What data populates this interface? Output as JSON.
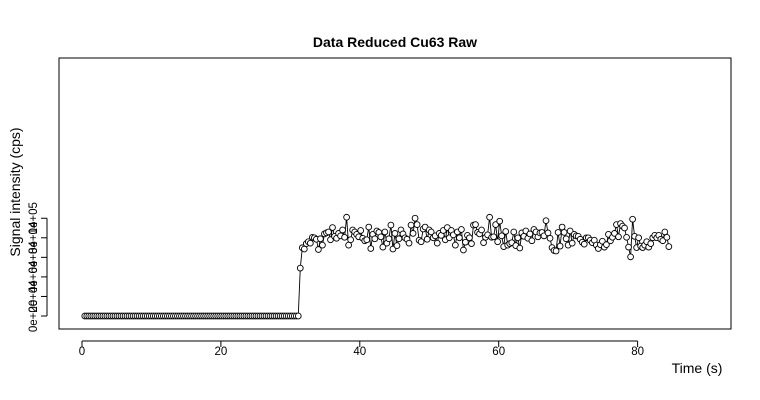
{
  "chart_data": {
    "type": "line",
    "title": "Data Reduced Cu63 Raw",
    "xlabel": "Time (s)",
    "ylabel": "Signal intensity (cps)",
    "xlim": [
      0,
      90
    ],
    "ylim": [
      0,
      100000
    ],
    "x_ticks": [
      0,
      20,
      40,
      60,
      80
    ],
    "x_tick_labels": [
      "0",
      "20",
      "40",
      "60",
      "80"
    ],
    "y_ticks": [
      0,
      20000,
      40000,
      60000,
      80000,
      100000
    ],
    "y_tick_labels": [
      "0e+00",
      "2e+04",
      "4e+04",
      "6e+04",
      "8e+04",
      "1e+05"
    ],
    "grid": false,
    "legend": "none",
    "marker": "open-circle",
    "line_color": "#000000",
    "x_start": 0.4,
    "x_step": 0.29,
    "values": [
      0,
      0,
      0,
      0,
      0,
      0,
      0,
      0,
      0,
      0,
      0,
      0,
      0,
      0,
      0,
      0,
      0,
      0,
      0,
      0,
      0,
      0,
      0,
      0,
      0,
      0,
      0,
      0,
      0,
      0,
      0,
      0,
      0,
      0,
      0,
      0,
      0,
      0,
      0,
      0,
      0,
      0,
      0,
      0,
      0,
      0,
      0,
      0,
      0,
      0,
      0,
      0,
      0,
      0,
      0,
      0,
      0,
      0,
      0,
      0,
      0,
      0,
      0,
      0,
      0,
      0,
      0,
      0,
      0,
      0,
      0,
      0,
      0,
      0,
      0,
      0,
      0,
      0,
      0,
      0,
      0,
      0,
      0,
      0,
      0,
      0,
      0,
      0,
      0,
      0,
      0,
      0,
      0,
      0,
      0,
      0,
      0,
      0,
      0,
      0,
      0,
      0,
      0,
      0,
      0,
      0,
      0,
      49000,
      69800,
      68500,
      74000,
      76000,
      74500,
      80500,
      80000,
      78500,
      68000,
      79000,
      72500,
      84000,
      85000,
      86000,
      78000,
      90500,
      81500,
      79500,
      84500,
      82000,
      88000,
      80500,
      101000,
      72500,
      78000,
      88000,
      86000,
      83500,
      81000,
      87500,
      79500,
      77000,
      78000,
      91000,
      69000,
      83500,
      79000,
      87000,
      85500,
      81000,
      70500,
      86000,
      74500,
      79000,
      93000,
      68500,
      84500,
      72000,
      79000,
      88000,
      84000,
      80000,
      78500,
      74500,
      93000,
      84500,
      100000,
      93500,
      77500,
      76000,
      89000,
      91000,
      78500,
      88000,
      86000,
      80000,
      82000,
      74500,
      84500,
      82500,
      87500,
      78000,
      90500,
      80000,
      87500,
      83000,
      72500,
      86000,
      80000,
      88500,
      67500,
      75500,
      82500,
      80000,
      74000,
      93000,
      93500,
      85500,
      84000,
      88000,
      75000,
      80500,
      83000,
      101000,
      80500,
      81000,
      93500,
      76000,
      97000,
      82000,
      71000,
      86500,
      72500,
      74000,
      75000,
      86000,
      72000,
      80000,
      69500,
      85000,
      81500,
      87000,
      79500,
      84000,
      77000,
      88500,
      86000,
      81000,
      85000,
      85500,
      82000,
      97500,
      85000,
      79500,
      70000,
      67000,
      66500,
      85500,
      71500,
      91000,
      85500,
      79000,
      72500,
      87000,
      74500,
      83500,
      82000,
      81500,
      78500,
      75500,
      73500,
      80000,
      80000,
      77500,
      75000,
      77500,
      72500,
      69000,
      73000,
      76500,
      70500,
      73000,
      83500,
      77000,
      80500,
      84500,
      93500,
      81000,
      94500,
      92000,
      90000,
      80500,
      70500,
      60500,
      99000,
      81500,
      70000,
      80000,
      71500,
      70000,
      72500,
      76000,
      70500,
      74000,
      80000,
      82500,
      80000,
      82500,
      78500,
      77000,
      86000,
      80500,
      71000
    ]
  }
}
